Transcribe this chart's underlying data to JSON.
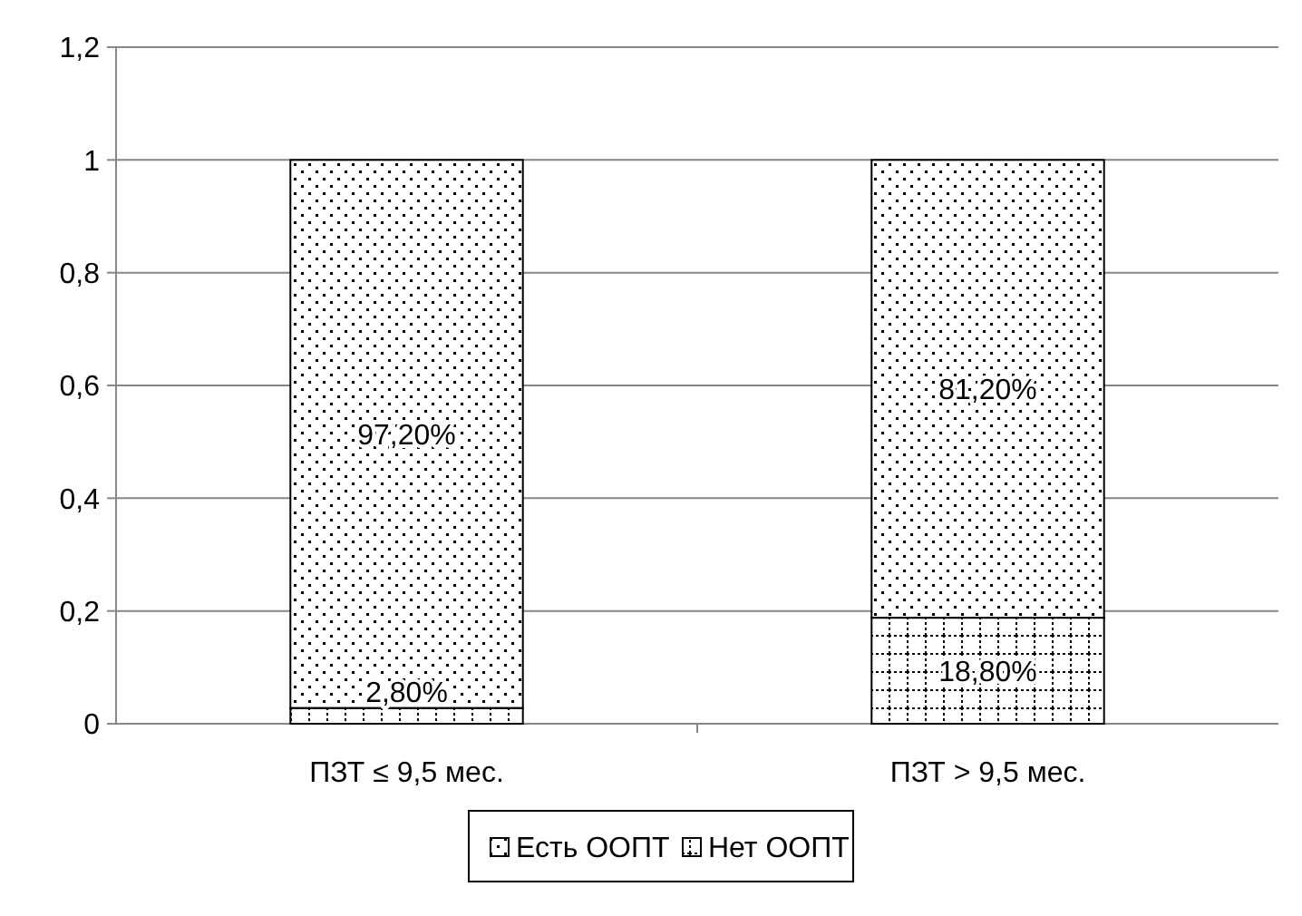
{
  "chart_data": {
    "type": "bar",
    "stacked": true,
    "categories": [
      "ПЗТ ≤ 9,5 мес.",
      "ПЗТ > 9,5 мес."
    ],
    "series": [
      {
        "name": "Нет ООПТ",
        "color": "#ffffff",
        "values": [
          0.028,
          0.188
        ],
        "value_labels": [
          "2,80%",
          "18,80%"
        ]
      },
      {
        "name": "Есть ООПТ",
        "color": "#ffffff",
        "values": [
          0.972,
          0.812
        ],
        "value_labels": [
          "97,20%",
          "81,20%"
        ]
      }
    ],
    "ylim": [
      0,
      1.2
    ],
    "yticks": [
      0,
      {
        "value": 0.2,
        "label": "0,2"
      },
      {
        "value": 0.4,
        "label": "0,4"
      },
      {
        "value": 0.6,
        "label": "0,6"
      },
      {
        "value": 0.8,
        "label": "0,8"
      },
      1,
      {
        "value": 1.2,
        "label": "1,2"
      }
    ],
    "grid": "y",
    "legend": "bottom"
  }
}
